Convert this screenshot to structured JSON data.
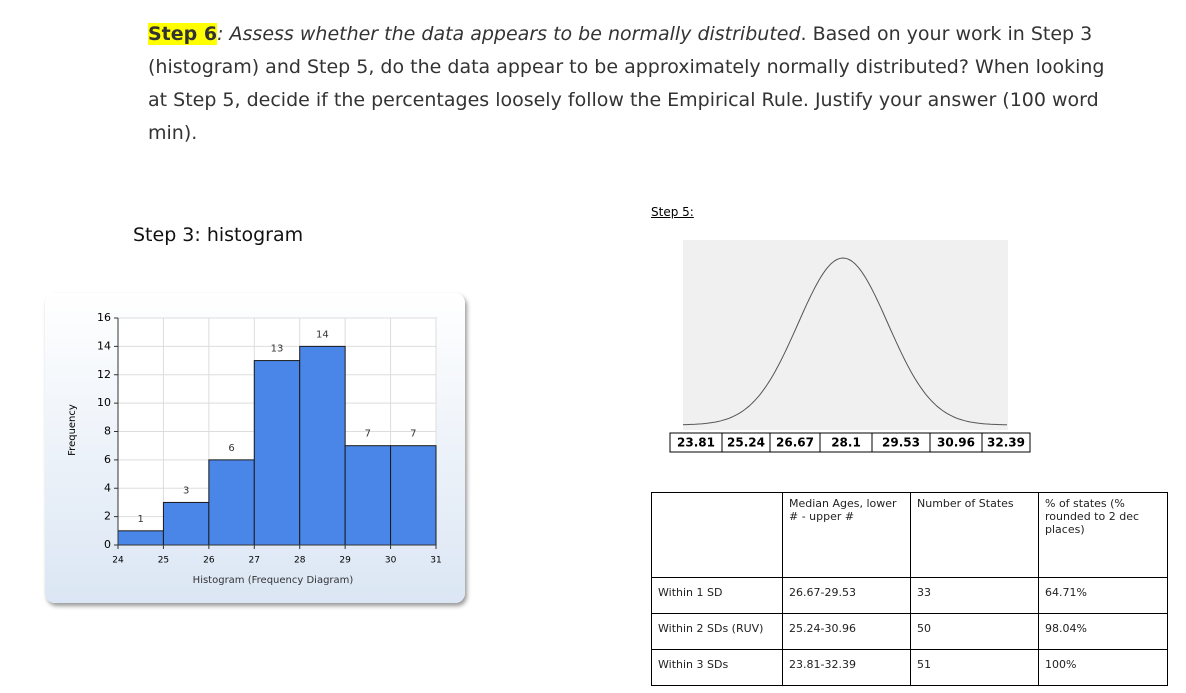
{
  "instructions": {
    "step_label": "Step 6",
    "question": ": Assess whether the data appears to be normally distributed",
    "text": ". Based on your work in Step 3 (histogram) and Step 5, do the data appear to be approximately normally distributed? When looking at Step 5, decide if the percentages loosely follow the Empirical Rule. Justify your answer (100 word min)."
  },
  "step3_label": "Step 3: histogram",
  "chart_data": {
    "type": "histogram",
    "bins": [
      24,
      25,
      26,
      27,
      28,
      29,
      30,
      31
    ],
    "values": [
      1,
      3,
      6,
      13,
      14,
      7,
      7
    ],
    "color": "#4a86e8",
    "xlabel": "Histogram (Frequency Diagram)",
    "ylabel": "Frequency",
    "xlim": [
      24,
      31
    ],
    "xticks": [
      24,
      25,
      26,
      27,
      28,
      29,
      30,
      31
    ],
    "ylim": [
      0,
      16
    ],
    "yticks": [
      0,
      2,
      4,
      6,
      8,
      10,
      12,
      14,
      16
    ],
    "grid": true
  },
  "step5": {
    "label": "Step 5:",
    "curve_labels": [
      "23.81",
      "25.24",
      "26.67",
      "28.1",
      "29.53",
      "30.96",
      "32.39"
    ],
    "table": {
      "header": [
        "Median Ages, lower # - upper #",
        "Number of States",
        "% of states (% rounded to 2 dec places)"
      ],
      "rows": [
        [
          "Within 1 SD",
          "26.67-29.53",
          "33",
          "64.71%"
        ],
        [
          "Within 2 SDs (RUV)",
          "25.24-30.96",
          "50",
          "98.04%"
        ],
        [
          "Within 3 SDs",
          "23.81-32.39",
          "51",
          "100%"
        ]
      ]
    }
  }
}
